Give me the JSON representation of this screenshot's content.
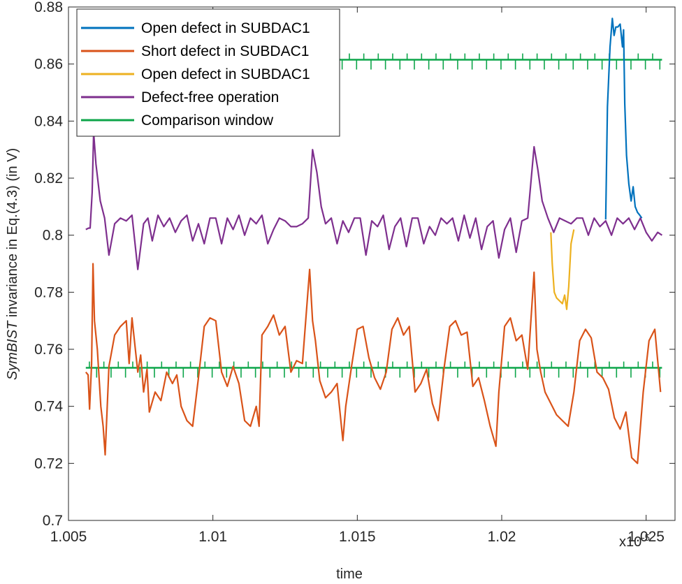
{
  "chart_data": {
    "type": "line",
    "xlabel": "time",
    "x_exponent_label": "x10",
    "x_exponent_power": "-5",
    "ylabel_prefix": "Sym",
    "ylabel_italic": "BIST",
    "ylabel_suffix": " invariance in Eq.(4.3) (in V)",
    "xlim": [
      1.005,
      1.026
    ],
    "ylim": [
      0.7,
      0.88
    ],
    "x_ticks": [
      1.005,
      1.01,
      1.015,
      1.02,
      1.025
    ],
    "x_tick_labels": [
      "1.005",
      "1.01",
      "1.015",
      "1.02",
      "1.025"
    ],
    "y_ticks": [
      0.7,
      0.72,
      0.74,
      0.76,
      0.78,
      0.8,
      0.82,
      0.84,
      0.86,
      0.88
    ],
    "y_tick_labels": [
      "0.7",
      "0.72",
      "0.74",
      "0.76",
      "0.78",
      "0.8",
      "0.82",
      "0.84",
      "0.86",
      "0.88"
    ],
    "grid": false,
    "legend_position": "top-left",
    "series": [
      {
        "name": "Open defect in SUBDAC1",
        "color": "#0072BD",
        "x": [
          1.0236,
          1.02366,
          1.02375,
          1.02383,
          1.02389,
          1.02395,
          1.02402,
          1.0241,
          1.02418,
          1.02422,
          1.02426,
          1.02432,
          1.0244,
          1.02448,
          1.02455,
          1.02462,
          1.0247,
          1.02478,
          1.02485
        ],
        "y": [
          0.8055,
          0.845,
          0.866,
          0.876,
          0.87,
          0.873,
          0.873,
          0.874,
          0.866,
          0.872,
          0.846,
          0.828,
          0.818,
          0.812,
          0.817,
          0.81,
          0.808,
          0.807,
          0.806
        ]
      },
      {
        "name": "Short defect in SUBDAC1",
        "color": "#D95319",
        "x": [
          1.0056,
          1.00568,
          1.00573,
          1.0058,
          1.00585,
          1.0059,
          1.006,
          1.00612,
          1.0062,
          1.00627,
          1.00632,
          1.0064,
          1.0066,
          1.0068,
          1.007,
          1.0071,
          1.0072,
          1.0074,
          1.0075,
          1.0076,
          1.00772,
          1.0078,
          1.008,
          1.0082,
          1.0084,
          1.0086,
          1.00875,
          1.0089,
          1.0091,
          1.0093,
          1.0095,
          1.0097,
          1.0099,
          1.0101,
          1.0103,
          1.0105,
          1.0107,
          1.0109,
          1.0111,
          1.0113,
          1.0115,
          1.0116,
          1.0117,
          1.0119,
          1.0121,
          1.0123,
          1.0125,
          1.0127,
          1.0129,
          1.0131,
          1.01335,
          1.01345,
          1.01355,
          1.0137,
          1.0139,
          1.0141,
          1.0143,
          1.0145,
          1.0146,
          1.0148,
          1.015,
          1.0152,
          1.0154,
          1.0156,
          1.0158,
          1.016,
          1.0162,
          1.0164,
          1.0166,
          1.0168,
          1.017,
          1.0172,
          1.0174,
          1.0176,
          1.0178,
          1.018,
          1.0182,
          1.0184,
          1.0186,
          1.0188,
          1.019,
          1.0192,
          1.0194,
          1.0196,
          1.0198,
          1.0199,
          1.0201,
          1.0203,
          1.0205,
          1.0207,
          1.0209,
          1.02112,
          1.02122,
          1.02135,
          1.0215,
          1.0217,
          1.0219,
          1.0221,
          1.0223,
          1.0225,
          1.0227,
          1.0229,
          1.0231,
          1.0233,
          1.0235,
          1.0237,
          1.0239,
          1.0241,
          1.0243,
          1.0245,
          1.0247,
          1.0249,
          1.0251,
          1.0253,
          1.0255
        ],
        "y": [
          0.752,
          0.751,
          0.739,
          0.755,
          0.79,
          0.77,
          0.76,
          0.74,
          0.733,
          0.723,
          0.735,
          0.754,
          0.765,
          0.768,
          0.77,
          0.755,
          0.771,
          0.752,
          0.758,
          0.745,
          0.753,
          0.738,
          0.745,
          0.742,
          0.752,
          0.748,
          0.751,
          0.74,
          0.735,
          0.733,
          0.75,
          0.768,
          0.771,
          0.77,
          0.752,
          0.747,
          0.754,
          0.748,
          0.735,
          0.733,
          0.74,
          0.733,
          0.765,
          0.768,
          0.772,
          0.765,
          0.768,
          0.752,
          0.756,
          0.755,
          0.788,
          0.77,
          0.763,
          0.749,
          0.743,
          0.745,
          0.748,
          0.728,
          0.74,
          0.754,
          0.767,
          0.768,
          0.757,
          0.75,
          0.746,
          0.752,
          0.767,
          0.771,
          0.765,
          0.768,
          0.745,
          0.748,
          0.753,
          0.741,
          0.735,
          0.753,
          0.768,
          0.77,
          0.765,
          0.766,
          0.747,
          0.75,
          0.742,
          0.733,
          0.726,
          0.745,
          0.768,
          0.771,
          0.763,
          0.765,
          0.753,
          0.787,
          0.76,
          0.752,
          0.745,
          0.741,
          0.737,
          0.735,
          0.733,
          0.745,
          0.763,
          0.767,
          0.764,
          0.752,
          0.75,
          0.746,
          0.736,
          0.732,
          0.738,
          0.722,
          0.72,
          0.745,
          0.763,
          0.767,
          0.745
        ]
      },
      {
        "name": "Open defect in SUBDAC1",
        "color": "#EDB120",
        "x": [
          1.0217,
          1.02175,
          1.02182,
          1.0219,
          1.022,
          1.0221,
          1.02218,
          1.02225,
          1.02232,
          1.0224,
          1.0225
        ],
        "y": [
          0.801,
          0.79,
          0.78,
          0.778,
          0.777,
          0.776,
          0.779,
          0.774,
          0.782,
          0.797,
          0.802
        ]
      },
      {
        "name": "Defect-free operation",
        "color": "#7E2F8E",
        "x": [
          1.0056,
          1.0057,
          1.00575,
          1.00582,
          1.00587,
          1.00595,
          1.0061,
          1.00625,
          1.0064,
          1.0066,
          1.0068,
          1.007,
          1.0072,
          1.0074,
          1.0076,
          1.00775,
          1.0079,
          1.0081,
          1.0083,
          1.0085,
          1.0087,
          1.0089,
          1.0091,
          1.0093,
          1.0095,
          1.0097,
          1.0099,
          1.0101,
          1.0103,
          1.0105,
          1.0107,
          1.0109,
          1.0111,
          1.0113,
          1.0115,
          1.0117,
          1.0119,
          1.0121,
          1.0123,
          1.0125,
          1.0127,
          1.0129,
          1.0131,
          1.0133,
          1.01345,
          1.0136,
          1.01375,
          1.0139,
          1.0141,
          1.0143,
          1.0145,
          1.0147,
          1.0149,
          1.0151,
          1.0153,
          1.0155,
          1.0157,
          1.0159,
          1.0161,
          1.0163,
          1.0165,
          1.0167,
          1.0169,
          1.0171,
          1.0173,
          1.0175,
          1.0177,
          1.0179,
          1.0181,
          1.0183,
          1.0185,
          1.0187,
          1.0189,
          1.0191,
          1.0193,
          1.0195,
          1.0197,
          1.0199,
          1.0201,
          1.0203,
          1.0205,
          1.0207,
          1.0209,
          1.02112,
          1.02125,
          1.0214,
          1.0216,
          1.0218,
          1.022,
          1.0222,
          1.0224,
          1.0226,
          1.0228,
          1.023,
          1.0232,
          1.0234,
          1.0236,
          1.0238,
          1.024,
          1.0242,
          1.0244,
          1.0246,
          1.0248,
          1.025,
          1.0252,
          1.0254,
          1.02555
        ],
        "y": [
          0.802,
          0.8025,
          0.8025,
          0.815,
          0.836,
          0.825,
          0.812,
          0.806,
          0.793,
          0.804,
          0.806,
          0.805,
          0.807,
          0.788,
          0.804,
          0.806,
          0.798,
          0.807,
          0.803,
          0.806,
          0.801,
          0.805,
          0.807,
          0.798,
          0.804,
          0.797,
          0.806,
          0.806,
          0.797,
          0.806,
          0.802,
          0.807,
          0.8,
          0.806,
          0.804,
          0.807,
          0.797,
          0.802,
          0.806,
          0.805,
          0.803,
          0.803,
          0.804,
          0.806,
          0.83,
          0.822,
          0.81,
          0.804,
          0.806,
          0.797,
          0.805,
          0.801,
          0.806,
          0.806,
          0.793,
          0.805,
          0.803,
          0.807,
          0.795,
          0.803,
          0.806,
          0.796,
          0.806,
          0.806,
          0.797,
          0.803,
          0.8,
          0.806,
          0.804,
          0.806,
          0.798,
          0.807,
          0.799,
          0.806,
          0.795,
          0.803,
          0.805,
          0.792,
          0.802,
          0.806,
          0.794,
          0.805,
          0.806,
          0.831,
          0.823,
          0.812,
          0.806,
          0.801,
          0.806,
          0.805,
          0.804,
          0.806,
          0.806,
          0.8,
          0.806,
          0.803,
          0.805,
          0.8,
          0.806,
          0.804,
          0.806,
          0.802,
          0.806,
          0.801,
          0.798,
          0.801,
          0.8
        ]
      },
      {
        "name": "Comparison window",
        "color": "#0DA54A",
        "x_start": 1.0056,
        "x_end": 1.02555,
        "y_levels": [
          0.8615,
          0.7535
        ],
        "tick_spacing": 0.00025
      }
    ]
  }
}
